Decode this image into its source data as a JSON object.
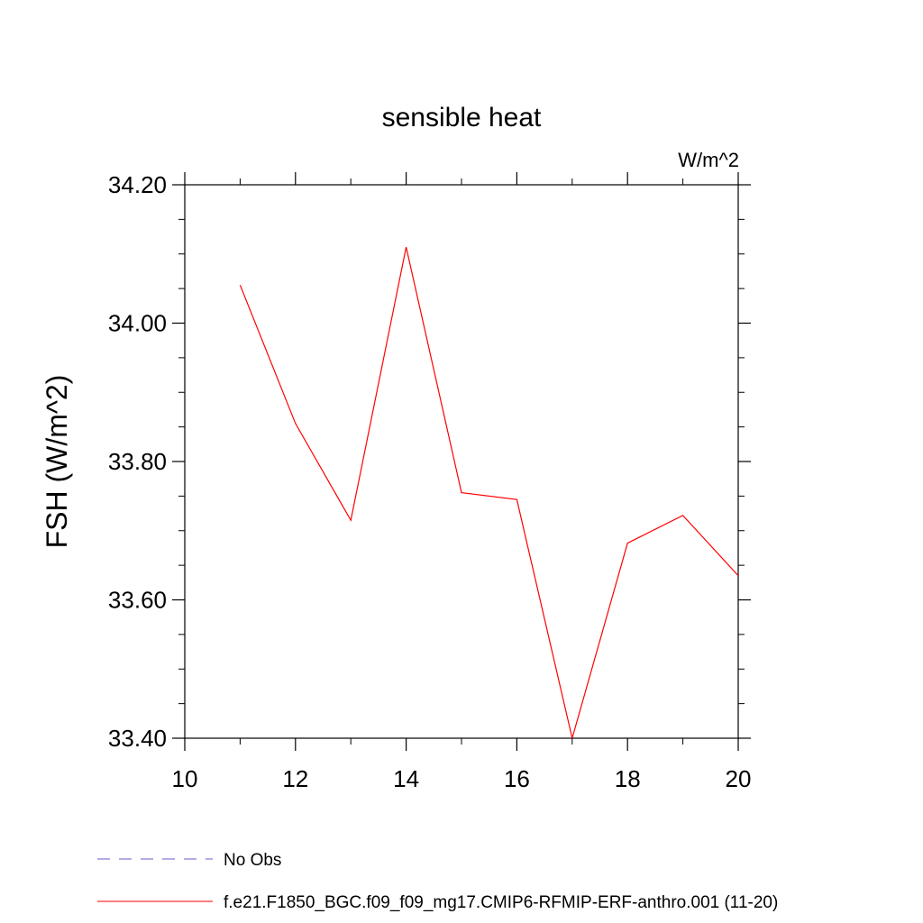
{
  "chart_data": {
    "type": "line",
    "title": "sensible heat",
    "units_label": "W/m^2",
    "ylabel": "FSH  (W/m^2)",
    "xlabel": "",
    "xlim": [
      10,
      20
    ],
    "ylim": [
      33.4,
      34.2
    ],
    "x_ticks": [
      "10",
      "12",
      "14",
      "16",
      "18",
      "20"
    ],
    "x_tick_values": [
      10,
      12,
      14,
      16,
      18,
      20
    ],
    "y_ticks": [
      "33.40",
      "33.60",
      "33.80",
      "34.00",
      "34.20"
    ],
    "y_tick_values": [
      33.4,
      33.6,
      33.8,
      34.0,
      34.2
    ],
    "grid": false,
    "series": [
      {
        "name": "f.e21.F1850_BGC.f09_f09_mg17.CMIP6-RFMIP-ERF-anthro.001 (11-20)",
        "color": "#ff0000",
        "style": "solid",
        "x": [
          11,
          12,
          13,
          14,
          15,
          16,
          17,
          18,
          19,
          20
        ],
        "y": [
          34.055,
          33.855,
          33.715,
          34.11,
          33.755,
          33.745,
          33.4,
          33.682,
          33.722,
          33.635
        ]
      }
    ],
    "legend": {
      "placement": "bottom-left",
      "entries": [
        {
          "label": "No Obs",
          "color": "#6a5acd",
          "style": "dashed"
        },
        {
          "label": "f.e21.F1850_BGC.f09_f09_mg17.CMIP6-RFMIP-ERF-anthro.001 (11-20)",
          "color": "#ff0000",
          "style": "solid"
        }
      ]
    }
  }
}
